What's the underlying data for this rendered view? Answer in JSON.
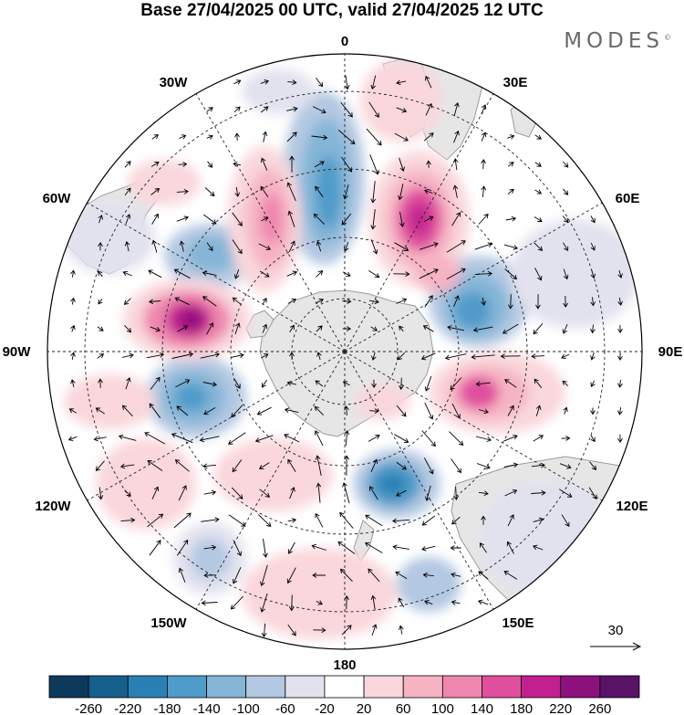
{
  "title": "Base 27/04/2025 00 UTC, valid 27/04/2025 12 UTC",
  "logo": {
    "text": "MODES",
    "mark": "©"
  },
  "longitude_labels": {
    "lon_0": "0",
    "lon_30e": "30E",
    "lon_60e": "60E",
    "lon_90e": "90E",
    "lon_120e": "120E",
    "lon_150e": "150E",
    "lon_180": "180",
    "lon_150w": "150W",
    "lon_120w": "120W",
    "lon_90w": "90W",
    "lon_60w": "60W",
    "lon_30w": "30W"
  },
  "reference_vector": {
    "label": "30"
  },
  "colorbar": {
    "labels": [
      "-260",
      "-220",
      "-180",
      "-140",
      "-100",
      "-60",
      "-20",
      "20",
      "60",
      "100",
      "140",
      "180",
      "220",
      "260"
    ],
    "colors": [
      "#0d3a5c",
      "#155f8c",
      "#2a80b5",
      "#4f9bc9",
      "#84b5d7",
      "#b3c8e2",
      "#e2e2ef",
      "#ffffff",
      "#f9d7dc",
      "#f6b3c3",
      "#ef86ae",
      "#e04f9e",
      "#c1208e",
      "#8c117d",
      "#581367"
    ]
  },
  "map": {
    "projection": "polar-stereographic-south",
    "field_colors": {
      "land": "#e6e6e6",
      "coast": "#9a9a9a",
      "vectors": "#000000"
    }
  }
}
